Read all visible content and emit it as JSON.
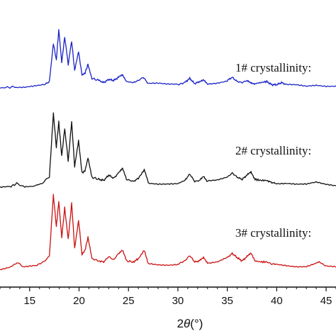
{
  "chart_data": {
    "type": "line",
    "xlabel_prefix": "2",
    "xlabel_symbol": "θ",
    "xlabel_suffix": "(°)",
    "xlim": [
      12,
      46
    ],
    "x_ticks": [
      15,
      20,
      25,
      30,
      35,
      40,
      45
    ],
    "x_tick_labels": [
      "15",
      "20",
      "25",
      "30",
      "35",
      "40",
      "45"
    ],
    "grid": false,
    "series": [
      {
        "annotation": "1# crystallinity:",
        "color": "#1a22c8",
        "x": [
          12.0,
          13.5,
          14.5,
          15.5,
          16.5,
          17.0,
          17.4,
          17.7,
          17.95,
          18.25,
          18.55,
          18.9,
          19.25,
          19.55,
          19.95,
          20.3,
          20.6,
          20.9,
          21.3,
          22.0,
          22.5,
          23.0,
          23.5,
          24.0,
          24.4,
          24.8,
          25.5,
          26.0,
          26.5,
          27.0,
          28.0,
          29.0,
          30.0,
          30.7,
          31.2,
          31.7,
          32.2,
          32.6,
          33.0,
          34.0,
          35.0,
          35.5,
          36.0,
          36.5,
          37.0,
          37.4,
          37.8,
          38.4,
          39.0,
          39.5,
          40.0,
          40.5,
          41.0,
          42.0,
          43.0,
          44.0,
          45.0,
          46.0
        ],
        "y": [
          0.0,
          0.01,
          0.01,
          0.02,
          0.03,
          0.06,
          0.42,
          0.26,
          0.55,
          0.24,
          0.48,
          0.22,
          0.44,
          0.16,
          0.34,
          0.12,
          0.14,
          0.22,
          0.09,
          0.07,
          0.05,
          0.08,
          0.07,
          0.1,
          0.12,
          0.06,
          0.05,
          0.07,
          0.1,
          0.04,
          0.04,
          0.03,
          0.03,
          0.05,
          0.09,
          0.04,
          0.06,
          0.08,
          0.04,
          0.05,
          0.07,
          0.1,
          0.06,
          0.05,
          0.07,
          0.05,
          0.04,
          0.05,
          0.06,
          0.03,
          0.03,
          0.05,
          0.03,
          0.03,
          0.02,
          0.03,
          0.02,
          0.02
        ]
      },
      {
        "annotation": "2# crystallinity:",
        "color": "#111111",
        "x": [
          12.0,
          13.0,
          13.7,
          14.5,
          15.5,
          16.2,
          17.0,
          17.4,
          17.7,
          17.95,
          18.25,
          18.55,
          18.9,
          19.25,
          19.55,
          19.95,
          20.3,
          20.6,
          20.9,
          21.3,
          22.0,
          22.5,
          23.0,
          23.5,
          24.0,
          24.4,
          24.8,
          25.5,
          26.0,
          26.6,
          27.0,
          28.0,
          29.0,
          30.0,
          30.7,
          31.2,
          31.7,
          32.2,
          32.6,
          33.0,
          34.0,
          35.0,
          35.5,
          36.0,
          36.5,
          37.0,
          37.4,
          37.8,
          38.4,
          39.0,
          39.5,
          40.0,
          41.0,
          42.0,
          43.0,
          44.0,
          45.0,
          46.0
        ],
        "y": [
          0.0,
          0.01,
          0.04,
          0.01,
          0.02,
          0.04,
          0.1,
          0.7,
          0.38,
          0.62,
          0.3,
          0.56,
          0.25,
          0.62,
          0.2,
          0.44,
          0.14,
          0.16,
          0.28,
          0.1,
          0.08,
          0.07,
          0.12,
          0.09,
          0.14,
          0.18,
          0.08,
          0.06,
          0.09,
          0.17,
          0.05,
          0.04,
          0.04,
          0.04,
          0.07,
          0.13,
          0.06,
          0.07,
          0.11,
          0.06,
          0.07,
          0.1,
          0.14,
          0.1,
          0.08,
          0.12,
          0.15,
          0.08,
          0.07,
          0.07,
          0.05,
          0.04,
          0.04,
          0.03,
          0.03,
          0.05,
          0.03,
          0.02
        ]
      },
      {
        "annotation": "3# crystallinity:",
        "color": "#cc1111",
        "x": [
          12.0,
          13.0,
          13.7,
          14.5,
          15.5,
          16.2,
          17.0,
          17.4,
          17.7,
          17.95,
          18.25,
          18.55,
          18.9,
          19.25,
          19.55,
          19.95,
          20.3,
          20.6,
          20.9,
          21.3,
          22.0,
          22.5,
          23.0,
          23.5,
          24.0,
          24.4,
          24.8,
          25.5,
          26.0,
          26.6,
          27.0,
          28.0,
          29.0,
          30.0,
          30.7,
          31.2,
          31.7,
          32.2,
          32.6,
          33.0,
          34.0,
          35.0,
          35.5,
          36.0,
          36.5,
          37.0,
          37.4,
          37.8,
          38.4,
          39.0,
          39.5,
          40.0,
          41.0,
          42.0,
          43.0,
          44.0,
          44.3,
          45.0,
          46.0
        ],
        "y": [
          0.0,
          0.02,
          0.06,
          0.02,
          0.03,
          0.06,
          0.12,
          0.7,
          0.4,
          0.64,
          0.3,
          0.58,
          0.28,
          0.62,
          0.2,
          0.46,
          0.14,
          0.18,
          0.3,
          0.1,
          0.08,
          0.07,
          0.12,
          0.09,
          0.15,
          0.18,
          0.08,
          0.07,
          0.1,
          0.18,
          0.05,
          0.04,
          0.04,
          0.05,
          0.08,
          0.13,
          0.07,
          0.08,
          0.11,
          0.06,
          0.07,
          0.11,
          0.15,
          0.11,
          0.08,
          0.12,
          0.15,
          0.08,
          0.07,
          0.07,
          0.05,
          0.05,
          0.04,
          0.03,
          0.03,
          0.06,
          0.07,
          0.03,
          0.02
        ]
      }
    ]
  }
}
